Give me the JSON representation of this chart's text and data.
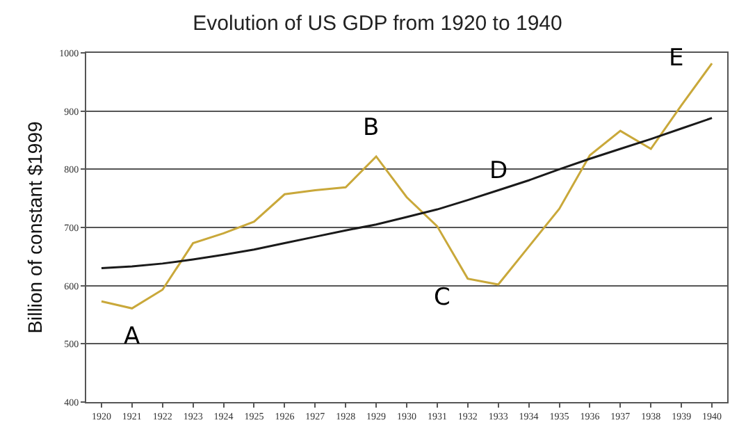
{
  "chart_data": {
    "type": "line",
    "title": "Evolution of US GDP from 1920 to 1940",
    "ylabel": "Billion of constant $1999",
    "categories": [
      "1920",
      "1921",
      "1922",
      "1923",
      "1924",
      "1925",
      "1926",
      "1927",
      "1928",
      "1929",
      "1930",
      "1931",
      "1932",
      "1933",
      "1934",
      "1935",
      "1936",
      "1937",
      "1938",
      "1939",
      "1940"
    ],
    "series": [
      {
        "color": "#c9a83a",
        "values": [
          573,
          561,
          593,
          673,
          690,
          710,
          757,
          764,
          769,
          822,
          752,
          702,
          612,
          602,
          667,
          732,
          824,
          866,
          835,
          910,
          982
        ]
      },
      {
        "color": "#1a1a1a",
        "values": [
          630,
          633,
          638,
          645,
          653,
          662,
          673,
          684,
          695,
          705,
          718,
          731,
          747,
          764,
          781,
          800,
          818,
          835,
          852,
          870,
          888
        ]
      }
    ],
    "ylim": [
      400,
      1000
    ],
    "yticks": [
      400,
      500,
      600,
      700,
      800,
      900,
      1000
    ],
    "grid": "y",
    "marker": "none",
    "line_style": "solid",
    "annotations": [
      {
        "text": "A",
        "x": "1921",
        "y": 561
      },
      {
        "text": "B",
        "x": "1929",
        "y": 822
      },
      {
        "text": "C",
        "x": "1932",
        "y": 612
      },
      {
        "text": "D",
        "x": "1933",
        "y": 764
      },
      {
        "text": "E",
        "x": "1939",
        "y": 910
      }
    ]
  }
}
